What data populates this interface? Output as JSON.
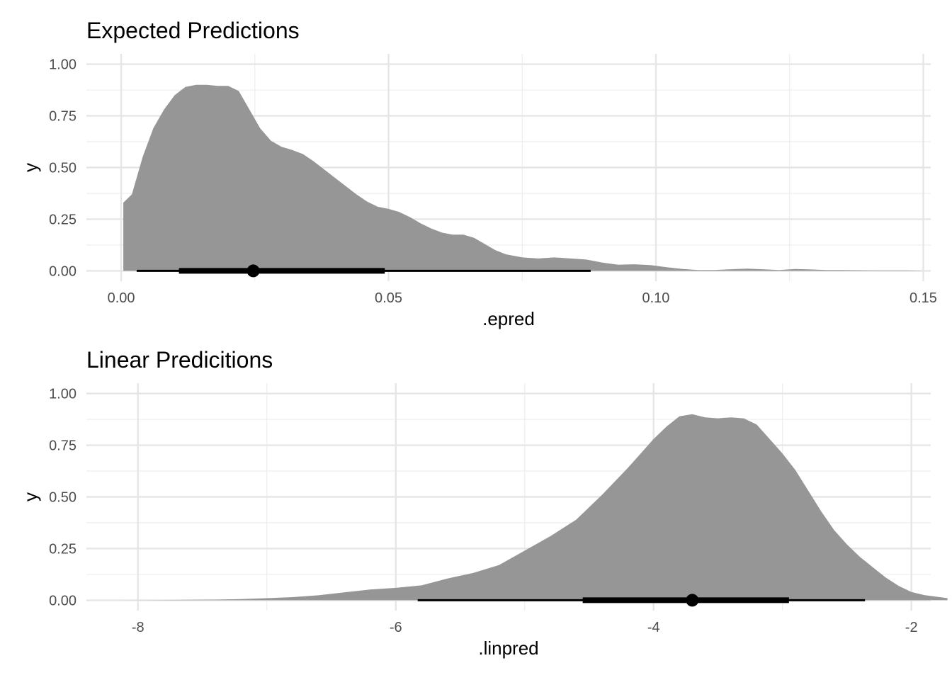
{
  "chart_data": [
    {
      "type": "area",
      "title": "Expected Predictions",
      "xlabel": ".epred",
      "ylabel": "y",
      "xlim": [
        -0.0065,
        0.1514
      ],
      "ylim": [
        -0.05,
        1.05
      ],
      "x_ticks": [
        0.0,
        0.05,
        0.1,
        0.15
      ],
      "x_tick_labels": [
        "0.00",
        "0.05",
        "0.10",
        "0.15"
      ],
      "y_ticks": [
        0.0,
        0.25,
        0.5,
        0.75,
        1.0
      ],
      "y_tick_labels": [
        "0.00",
        "0.25",
        "0.50",
        "0.75",
        "1.00"
      ],
      "fill_color": "#969696",
      "point_color": "#000000",
      "grid": true,
      "density": {
        "x": [
          0.0004,
          0.002,
          0.004,
          0.006,
          0.008,
          0.01,
          0.012,
          0.014,
          0.016,
          0.018,
          0.02,
          0.022,
          0.024,
          0.026,
          0.028,
          0.03,
          0.032,
          0.034,
          0.036,
          0.038,
          0.04,
          0.042,
          0.044,
          0.046,
          0.048,
          0.05,
          0.052,
          0.054,
          0.056,
          0.058,
          0.06,
          0.062,
          0.064,
          0.066,
          0.068,
          0.07,
          0.072,
          0.075,
          0.078,
          0.081,
          0.084,
          0.087,
          0.09,
          0.093,
          0.096,
          0.099,
          0.102,
          0.105,
          0.108,
          0.111,
          0.114,
          0.117,
          0.12,
          0.123,
          0.126,
          0.129,
          0.132,
          0.135,
          0.138,
          0.141,
          0.144,
          0.147,
          0.1495
        ],
        "y": [
          0.33,
          0.37,
          0.55,
          0.69,
          0.78,
          0.85,
          0.89,
          0.9,
          0.9,
          0.895,
          0.895,
          0.87,
          0.78,
          0.69,
          0.63,
          0.6,
          0.585,
          0.565,
          0.53,
          0.49,
          0.45,
          0.41,
          0.37,
          0.335,
          0.31,
          0.3,
          0.285,
          0.26,
          0.23,
          0.205,
          0.185,
          0.175,
          0.175,
          0.16,
          0.13,
          0.1,
          0.08,
          0.065,
          0.06,
          0.065,
          0.06,
          0.055,
          0.04,
          0.03,
          0.032,
          0.028,
          0.018,
          0.009,
          0.004,
          0.004,
          0.008,
          0.011,
          0.008,
          0.004,
          0.009,
          0.007,
          0.004,
          0.004,
          0.003,
          0.002,
          0.002,
          0.002,
          0.001
        ]
      },
      "point_interval": {
        "point": 0.0247,
        "interval_66": [
          0.0108,
          0.0493
        ],
        "interval_95": [
          0.0029,
          0.0878
        ]
      }
    },
    {
      "type": "area",
      "title": "Linear Predicitions",
      "xlabel": ".linpred",
      "ylabel": "y",
      "xlim": [
        -8.4,
        -1.85
      ],
      "ylim": [
        -0.05,
        1.05
      ],
      "x_ticks": [
        -8,
        -6,
        -4,
        -2
      ],
      "x_tick_labels": [
        "-8",
        "-6",
        "-4",
        "-2"
      ],
      "y_ticks": [
        0.0,
        0.25,
        0.5,
        0.75,
        1.0
      ],
      "y_tick_labels": [
        "0.00",
        "0.25",
        "0.50",
        "0.75",
        "1.00"
      ],
      "fill_color": "#969696",
      "point_color": "#000000",
      "grid": true,
      "density": {
        "x": [
          -8.14,
          -7.8,
          -7.4,
          -7.2,
          -7.0,
          -6.8,
          -6.6,
          -6.4,
          -6.2,
          -6.0,
          -5.8,
          -5.6,
          -5.4,
          -5.2,
          -5.0,
          -4.8,
          -4.6,
          -4.4,
          -4.2,
          -4.0,
          -3.9,
          -3.8,
          -3.7,
          -3.6,
          -3.5,
          -3.4,
          -3.3,
          -3.2,
          -3.1,
          -3.0,
          -2.9,
          -2.8,
          -2.7,
          -2.6,
          -2.5,
          -2.4,
          -2.3,
          -2.2,
          -2.1,
          -2.0,
          -1.9,
          -1.72
        ],
        "y": [
          0.0,
          0.001,
          0.003,
          0.006,
          0.01,
          0.015,
          0.024,
          0.038,
          0.052,
          0.06,
          0.072,
          0.105,
          0.132,
          0.17,
          0.24,
          0.31,
          0.39,
          0.51,
          0.64,
          0.78,
          0.84,
          0.89,
          0.9,
          0.885,
          0.88,
          0.885,
          0.88,
          0.85,
          0.78,
          0.71,
          0.63,
          0.53,
          0.43,
          0.34,
          0.27,
          0.21,
          0.16,
          0.11,
          0.07,
          0.04,
          0.025,
          0.01
        ]
      },
      "point_interval": {
        "point": -3.7,
        "interval_66": [
          -4.55,
          -2.95
        ],
        "interval_95": [
          -5.83,
          -2.36
        ]
      }
    }
  ]
}
